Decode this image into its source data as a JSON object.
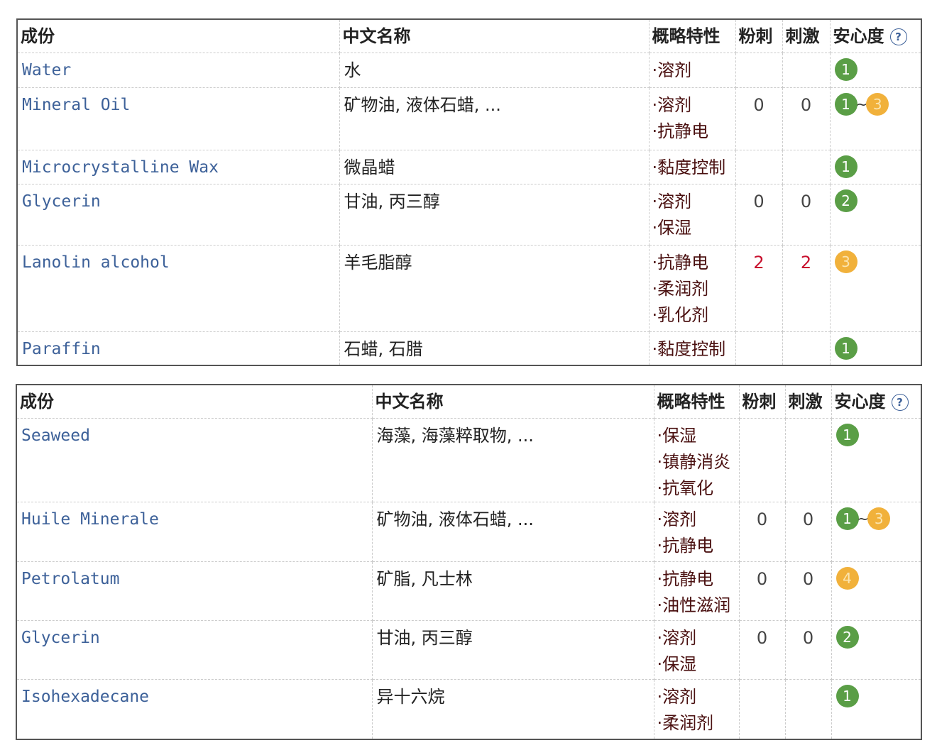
{
  "colors": {
    "safe": "#5a9e46",
    "moderate": "#f1b13b",
    "name_link": "#3d6199",
    "irritant_high": "#c8102e"
  },
  "headers": {
    "ingredient": "成份",
    "chinese_name": "中文名称",
    "properties": "概略特性",
    "acne": "粉刺",
    "irritation": "刺激",
    "safety": "安心度",
    "help_icon": "question-circle-icon",
    "help_glyph": "?"
  },
  "tables": [
    {
      "rows": [
        {
          "name": "Water",
          "cn": "水",
          "props": [
            "·溶剂"
          ],
          "acne": "",
          "irritation": "",
          "safety": [
            "1"
          ]
        },
        {
          "name": "Mineral Oil",
          "cn": "矿物油, 液体石蜡, ...",
          "props": [
            "·溶剂",
            "·抗静电"
          ],
          "acne": "0",
          "irritation": "0",
          "safety": [
            "1",
            "3"
          ]
        },
        {
          "name": "Microcrystalline Wax",
          "cn": "微晶蜡",
          "props": [
            "·黏度控制"
          ],
          "acne": "",
          "irritation": "",
          "safety": [
            "1"
          ]
        },
        {
          "name": "Glycerin",
          "cn": "甘油, 丙三醇",
          "props": [
            "·溶剂",
            "·保湿"
          ],
          "acne": "0",
          "irritation": "0",
          "safety": [
            "2"
          ]
        },
        {
          "name": "Lanolin alcohol",
          "cn": "羊毛脂醇",
          "props": [
            "·抗静电",
            "·柔润剂",
            "·乳化剂"
          ],
          "acne": "2",
          "irritation": "2",
          "safety": [
            "3"
          ]
        },
        {
          "name": "Paraffin",
          "cn": "石蜡, 石腊",
          "props": [
            "·黏度控制"
          ],
          "acne": "",
          "irritation": "",
          "safety": [
            "1"
          ]
        }
      ]
    },
    {
      "rows": [
        {
          "name": "Seaweed",
          "cn": "海藻, 海藻粹取物, ...",
          "props": [
            "·保湿",
            "·镇静消炎",
            "·抗氧化"
          ],
          "acne": "",
          "irritation": "",
          "safety": [
            "1"
          ]
        },
        {
          "name": "Huile Minerale",
          "cn": "矿物油, 液体石蜡, ...",
          "props": [
            "·溶剂",
            "·抗静电"
          ],
          "acne": "0",
          "irritation": "0",
          "safety": [
            "1",
            "3"
          ]
        },
        {
          "name": "Petrolatum",
          "cn": "矿脂, 凡士林",
          "props": [
            "·抗静电",
            "·油性滋润"
          ],
          "acne": "0",
          "irritation": "0",
          "safety": [
            "4"
          ]
        },
        {
          "name": "Glycerin",
          "cn": "甘油, 丙三醇",
          "props": [
            "·溶剂",
            "·保湿"
          ],
          "acne": "0",
          "irritation": "0",
          "safety": [
            "2"
          ]
        },
        {
          "name": "Isohexadecane",
          "cn": "异十六烷",
          "props": [
            "·溶剂",
            "·柔润剂"
          ],
          "acne": "",
          "irritation": "",
          "safety": [
            "1"
          ]
        }
      ]
    }
  ]
}
